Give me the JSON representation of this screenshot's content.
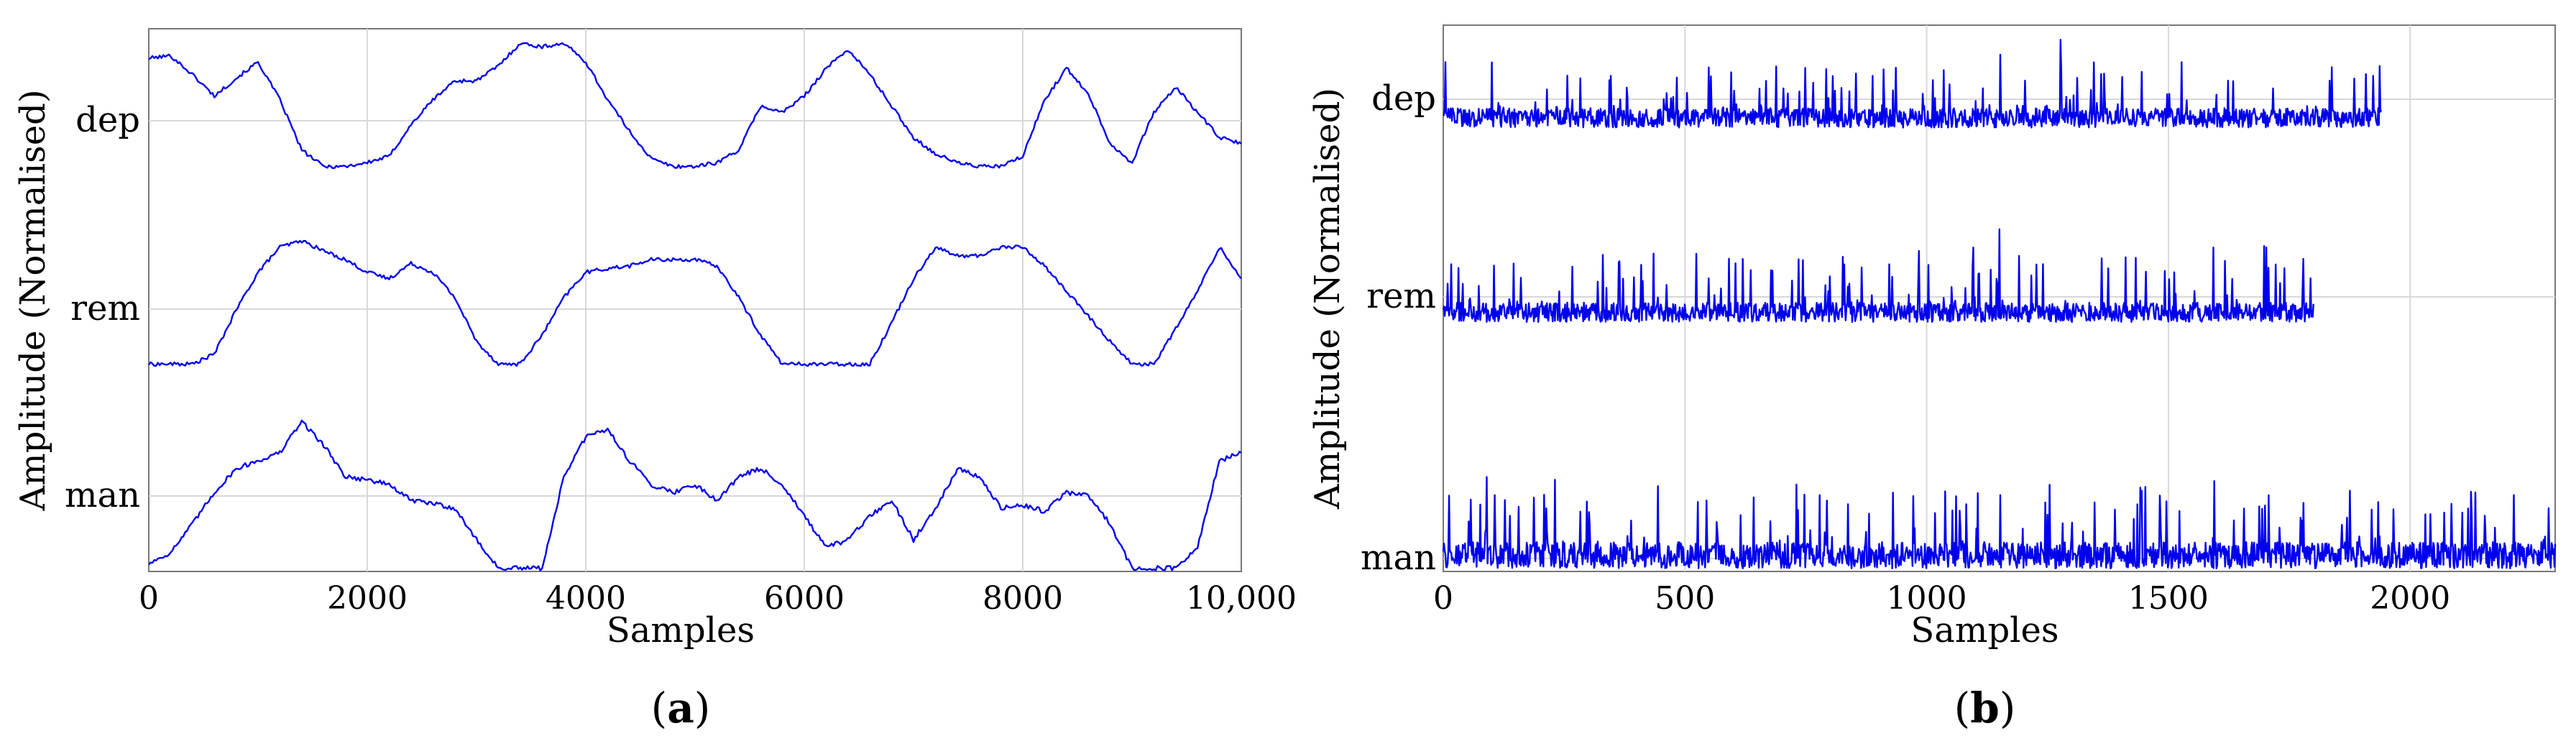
{
  "chart_data": [
    {
      "type": "line",
      "panel": "a",
      "caption": "a",
      "xlabel": "Samples",
      "ylabel": "Amplitude (Normalised)",
      "xlim": [
        0,
        10000
      ],
      "x_ticks": [
        0,
        2000,
        4000,
        6000,
        8000,
        10000
      ],
      "x_tick_labels": [
        "0",
        "2000",
        "4000",
        "6000",
        "8000",
        "10,000"
      ],
      "grid": true,
      "series": [
        {
          "name": "dep",
          "x": [
            0,
            200,
            400,
            600,
            800,
            1000,
            1200,
            1400,
            1600,
            1800,
            2000,
            2200,
            2400,
            2600,
            2800,
            3000,
            3200,
            3400,
            3600,
            3800,
            4000,
            4200,
            4400,
            4600,
            4800,
            5000,
            5200,
            5400,
            5600,
            5800,
            6000,
            6200,
            6400,
            6600,
            6800,
            7000,
            7200,
            7400,
            7600,
            7800,
            8000,
            8200,
            8400,
            8600,
            8800,
            9000,
            9200,
            9400,
            9600,
            9800,
            10000
          ],
          "y": [
            0.88,
            0.9,
            0.75,
            0.58,
            0.72,
            0.85,
            0.55,
            0.15,
            0.02,
            0.02,
            0.05,
            0.1,
            0.35,
            0.55,
            0.7,
            0.7,
            0.82,
            1.0,
            0.97,
            1.0,
            0.85,
            0.55,
            0.3,
            0.08,
            0.02,
            0.02,
            0.05,
            0.15,
            0.5,
            0.45,
            0.58,
            0.8,
            0.95,
            0.75,
            0.5,
            0.25,
            0.12,
            0.05,
            0.02,
            0.02,
            0.1,
            0.55,
            0.8,
            0.6,
            0.2,
            0.05,
            0.45,
            0.65,
            0.45,
            0.25,
            0.2
          ]
        },
        {
          "name": "rem",
          "x": [
            0,
            200,
            400,
            600,
            800,
            1000,
            1200,
            1400,
            1600,
            1800,
            2000,
            2200,
            2400,
            2600,
            2800,
            3000,
            3200,
            3400,
            3600,
            3800,
            4000,
            4200,
            4400,
            4600,
            4800,
            5000,
            5200,
            5400,
            5600,
            5800,
            6000,
            6200,
            6400,
            6600,
            6800,
            7000,
            7200,
            7400,
            7600,
            7800,
            8000,
            8200,
            8400,
            8600,
            8800,
            9000,
            9200,
            9400,
            9600,
            9800,
            10000
          ],
          "y": [
            0.02,
            0.02,
            0.02,
            0.1,
            0.45,
            0.75,
            0.95,
            1.0,
            0.92,
            0.85,
            0.75,
            0.7,
            0.82,
            0.75,
            0.55,
            0.2,
            0.02,
            0.02,
            0.25,
            0.55,
            0.75,
            0.78,
            0.8,
            0.85,
            0.85,
            0.85,
            0.8,
            0.55,
            0.25,
            0.02,
            0.02,
            0.02,
            0.02,
            0.02,
            0.35,
            0.7,
            0.95,
            0.88,
            0.88,
            0.95,
            0.95,
            0.8,
            0.6,
            0.4,
            0.2,
            0.02,
            0.02,
            0.3,
            0.6,
            0.95,
            0.7
          ]
        },
        {
          "name": "man",
          "x": [
            0,
            200,
            400,
            600,
            800,
            1000,
            1200,
            1400,
            1600,
            1800,
            2000,
            2200,
            2400,
            2600,
            2800,
            3000,
            3200,
            3400,
            3600,
            3800,
            4000,
            4200,
            4400,
            4600,
            4800,
            5000,
            5200,
            5400,
            5600,
            5800,
            6000,
            6200,
            6400,
            6600,
            6800,
            7000,
            7200,
            7400,
            7600,
            7800,
            8000,
            8200,
            8400,
            8600,
            8800,
            9000,
            9200,
            9400,
            9600,
            9800,
            10000
          ],
          "y": [
            0.05,
            0.12,
            0.3,
            0.5,
            0.65,
            0.7,
            0.75,
            0.95,
            0.8,
            0.6,
            0.58,
            0.55,
            0.45,
            0.43,
            0.4,
            0.2,
            0.02,
            0.02,
            0.02,
            0.6,
            0.85,
            0.9,
            0.7,
            0.55,
            0.5,
            0.55,
            0.45,
            0.6,
            0.65,
            0.55,
            0.35,
            0.15,
            0.2,
            0.35,
            0.45,
            0.2,
            0.4,
            0.65,
            0.6,
            0.4,
            0.42,
            0.38,
            0.5,
            0.48,
            0.3,
            0.02,
            0.02,
            0.02,
            0.15,
            0.7,
            0.75
          ]
        }
      ]
    },
    {
      "type": "line",
      "panel": "b",
      "caption": "b",
      "xlabel": "Samples",
      "ylabel": "Amplitude (Normalised)",
      "xlim": [
        0,
        2300
      ],
      "x_ticks": [
        0,
        500,
        1000,
        1500,
        2000
      ],
      "x_tick_labels": [
        "0",
        "500",
        "1000",
        "1500",
        "2000"
      ],
      "grid": true,
      "series": [
        {
          "name": "dep",
          "length": 1940,
          "baseline": 0.05,
          "spread": 0.5
        },
        {
          "name": "rem",
          "length": 1800,
          "baseline": 0.08,
          "spread": 0.55
        },
        {
          "name": "man",
          "length": 2300,
          "baseline": 0.02,
          "spread": 0.45
        }
      ]
    }
  ]
}
